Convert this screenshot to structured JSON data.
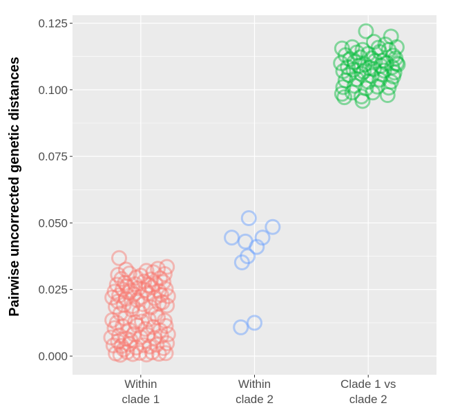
{
  "chart_data": {
    "type": "scatter",
    "title": "",
    "xlabel": "",
    "ylabel": "Pairwise uncorrected genetic distances",
    "ylim": [
      -0.007,
      0.128
    ],
    "y_ticks": [
      "0.000",
      "0.025",
      "0.050",
      "0.075",
      "0.100",
      "0.125"
    ],
    "grid": true,
    "legend": "none",
    "categories": [
      "Within\nclade 1",
      "Within\nclade 2",
      "Clade 1 vs\nclade 2"
    ],
    "series": [
      {
        "category": "Within\nclade 1",
        "color": "#F8766D",
        "points": [
          [
            0.78,
            0.001
          ],
          [
            0.82,
            0.0005
          ],
          [
            0.88,
            0.0015
          ],
          [
            0.93,
            0.0008
          ],
          [
            0.99,
            0.0012
          ],
          [
            1.05,
            0.0006
          ],
          [
            1.1,
            0.0014
          ],
          [
            1.16,
            0.0009
          ],
          [
            1.22,
            0.0011
          ],
          [
            0.85,
            0.0025
          ],
          [
            0.76,
            0.004
          ],
          [
            0.83,
            0.0038
          ],
          [
            0.9,
            0.0045
          ],
          [
            0.96,
            0.0032
          ],
          [
            1.03,
            0.0041
          ],
          [
            1.08,
            0.0036
          ],
          [
            1.14,
            0.0043
          ],
          [
            1.2,
            0.003
          ],
          [
            1.23,
            0.0048
          ],
          [
            0.8,
            0.0055
          ],
          [
            0.74,
            0.007
          ],
          [
            0.81,
            0.0078
          ],
          [
            0.87,
            0.0066
          ],
          [
            0.94,
            0.0083
          ],
          [
            1.0,
            0.0071
          ],
          [
            1.06,
            0.0079
          ],
          [
            1.12,
            0.0068
          ],
          [
            1.18,
            0.0075
          ],
          [
            1.24,
            0.0082
          ],
          [
            0.91,
            0.006
          ],
          [
            0.77,
            0.0105
          ],
          [
            0.84,
            0.0112
          ],
          [
            0.9,
            0.0098
          ],
          [
            0.97,
            0.0115
          ],
          [
            1.04,
            0.0102
          ],
          [
            1.11,
            0.0109
          ],
          [
            1.17,
            0.0096
          ],
          [
            1.22,
            0.0113
          ],
          [
            0.79,
            0.0125
          ],
          [
            1.01,
            0.013
          ],
          [
            0.75,
            0.0135
          ],
          [
            0.86,
            0.0142
          ],
          [
            0.95,
            0.0128
          ],
          [
            1.07,
            0.0138
          ],
          [
            1.15,
            0.0145
          ],
          [
            1.21,
            0.0133
          ],
          [
            0.82,
            0.016
          ],
          [
            0.99,
            0.0165
          ],
          [
            1.13,
            0.0158
          ],
          [
            0.92,
            0.0175
          ],
          [
            0.78,
            0.0185
          ],
          [
            0.85,
            0.0192
          ],
          [
            0.93,
            0.0188
          ],
          [
            1.02,
            0.0195
          ],
          [
            1.09,
            0.0183
          ],
          [
            1.16,
            0.0198
          ],
          [
            1.23,
            0.019
          ],
          [
            0.8,
            0.0205
          ],
          [
            0.97,
            0.021
          ],
          [
            1.19,
            0.0202
          ],
          [
            0.75,
            0.022
          ],
          [
            0.81,
            0.0228
          ],
          [
            0.87,
            0.0215
          ],
          [
            0.94,
            0.0232
          ],
          [
            1.0,
            0.0222
          ],
          [
            1.06,
            0.0236
          ],
          [
            1.12,
            0.0218
          ],
          [
            1.18,
            0.023
          ],
          [
            1.24,
            0.0225
          ],
          [
            0.9,
            0.024
          ],
          [
            0.77,
            0.0242
          ],
          [
            0.84,
            0.025
          ],
          [
            0.91,
            0.0246
          ],
          [
            0.98,
            0.0255
          ],
          [
            1.04,
            0.0248
          ],
          [
            1.1,
            0.0258
          ],
          [
            1.16,
            0.0244
          ],
          [
            1.22,
            0.0252
          ],
          [
            0.88,
            0.0262
          ],
          [
            1.07,
            0.0266
          ],
          [
            0.79,
            0.0268
          ],
          [
            0.86,
            0.0275
          ],
          [
            0.95,
            0.027
          ],
          [
            1.03,
            0.028
          ],
          [
            1.13,
            0.0272
          ],
          [
            1.2,
            0.0278
          ],
          [
            0.83,
            0.029
          ],
          [
            0.96,
            0.0295
          ],
          [
            1.09,
            0.0288
          ],
          [
            1.17,
            0.0292
          ],
          [
            0.8,
            0.0305
          ],
          [
            0.9,
            0.031
          ],
          [
            1.0,
            0.0302
          ],
          [
            1.11,
            0.0315
          ],
          [
            1.21,
            0.0308
          ],
          [
            0.87,
            0.0325
          ],
          [
            1.05,
            0.032
          ],
          [
            1.15,
            0.0328
          ],
          [
            1.23,
            0.0335
          ],
          [
            0.81,
            0.0368
          ]
        ]
      },
      {
        "category": "Within\nclade 2",
        "color": "#619CFF",
        "points": [
          [
            1.95,
            0.0518
          ],
          [
            2.16,
            0.0485
          ],
          [
            1.8,
            0.0445
          ],
          [
            1.92,
            0.043
          ],
          [
            2.07,
            0.0445
          ],
          [
            2.02,
            0.041
          ],
          [
            1.94,
            0.0375
          ],
          [
            1.89,
            0.0352
          ],
          [
            1.88,
            0.0108
          ],
          [
            2.0,
            0.0125
          ]
        ]
      },
      {
        "category": "Clade 1 vs\nclade 2",
        "color": "#00BA38",
        "points": [
          [
            2.98,
            0.122
          ],
          [
            3.2,
            0.12
          ],
          [
            3.05,
            0.118
          ],
          [
            3.15,
            0.117
          ],
          [
            3.25,
            0.116
          ],
          [
            2.77,
            0.1155
          ],
          [
            2.86,
            0.116
          ],
          [
            2.95,
            0.115
          ],
          [
            3.09,
            0.1158
          ],
          [
            3.18,
            0.115
          ],
          [
            2.8,
            0.113
          ],
          [
            2.9,
            0.114
          ],
          [
            3.0,
            0.1135
          ],
          [
            3.1,
            0.1142
          ],
          [
            3.22,
            0.1128
          ],
          [
            2.84,
            0.1115
          ],
          [
            2.93,
            0.1122
          ],
          [
            3.03,
            0.1118
          ],
          [
            3.13,
            0.111
          ],
          [
            3.24,
            0.1118
          ],
          [
            2.76,
            0.11
          ],
          [
            2.88,
            0.1105
          ],
          [
            2.97,
            0.1095
          ],
          [
            3.06,
            0.1108
          ],
          [
            3.16,
            0.11
          ],
          [
            3.26,
            0.1095
          ],
          [
            2.82,
            0.1085
          ],
          [
            2.92,
            0.109
          ],
          [
            3.01,
            0.1082
          ],
          [
            3.11,
            0.109
          ],
          [
            3.21,
            0.1085
          ],
          [
            2.78,
            0.107
          ],
          [
            2.87,
            0.1075
          ],
          [
            2.96,
            0.1068
          ],
          [
            3.05,
            0.1078
          ],
          [
            3.14,
            0.1072
          ],
          [
            3.23,
            0.1065
          ],
          [
            2.83,
            0.1055
          ],
          [
            2.94,
            0.106
          ],
          [
            3.03,
            0.1052
          ],
          [
            3.12,
            0.1058
          ],
          [
            3.22,
            0.105
          ],
          [
            2.8,
            0.1035
          ],
          [
            2.9,
            0.104
          ],
          [
            3.0,
            0.103
          ],
          [
            3.1,
            0.1038
          ],
          [
            3.2,
            0.103
          ],
          [
            2.78,
            0.101
          ],
          [
            2.88,
            0.1015
          ],
          [
            2.98,
            0.1005
          ],
          [
            3.08,
            0.1012
          ],
          [
            3.18,
            0.1008
          ],
          [
            2.77,
            0.0985
          ],
          [
            2.86,
            0.099
          ],
          [
            2.94,
            0.0975
          ],
          [
            3.04,
            0.099
          ],
          [
            3.17,
            0.098
          ],
          [
            2.79,
            0.0972
          ],
          [
            3.25,
            0.11
          ],
          [
            2.95,
            0.0958
          ]
        ]
      }
    ]
  }
}
